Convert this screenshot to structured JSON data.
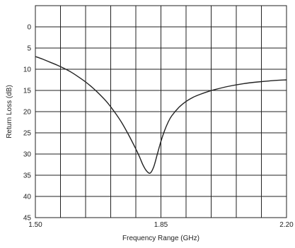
{
  "chart_data": {
    "type": "line",
    "title": "",
    "xlabel": "Frequency Range (GHz)",
    "ylabel": "Return Loss (dB)",
    "xlim": [
      1.5,
      2.2
    ],
    "ylim": [
      -5,
      45
    ],
    "y_inverted": true,
    "grid": true,
    "x_grid_divisions": 10,
    "x_tick_labels": [
      {
        "value": 1.5,
        "label": "1.50"
      },
      {
        "value": 1.85,
        "label": "1.85"
      },
      {
        "value": 2.2,
        "label": "2.20"
      }
    ],
    "y_ticks": [
      0,
      5,
      10,
      15,
      20,
      25,
      30,
      35,
      40,
      45
    ],
    "series": [
      {
        "color": "#222222",
        "x": [
          1.5,
          1.52,
          1.54,
          1.56,
          1.58,
          1.6,
          1.62,
          1.64,
          1.66,
          1.68,
          1.7,
          1.72,
          1.74,
          1.76,
          1.78,
          1.79,
          1.8,
          1.81,
          1.82,
          1.83,
          1.84,
          1.85,
          1.86,
          1.87,
          1.88,
          1.9,
          1.92,
          1.94,
          1.96,
          1.98,
          2.0,
          2.04,
          2.08,
          2.12,
          2.16,
          2.2
        ],
        "y": [
          7.0,
          7.6,
          8.3,
          9.0,
          9.8,
          10.7,
          11.8,
          13.0,
          14.4,
          16.0,
          17.8,
          20.0,
          22.5,
          25.5,
          28.8,
          30.6,
          32.6,
          34.0,
          34.5,
          33.0,
          30.0,
          27.0,
          24.5,
          22.5,
          21.0,
          19.0,
          17.6,
          16.6,
          15.9,
          15.3,
          14.8,
          14.0,
          13.4,
          13.0,
          12.7,
          12.5
        ]
      }
    ]
  }
}
